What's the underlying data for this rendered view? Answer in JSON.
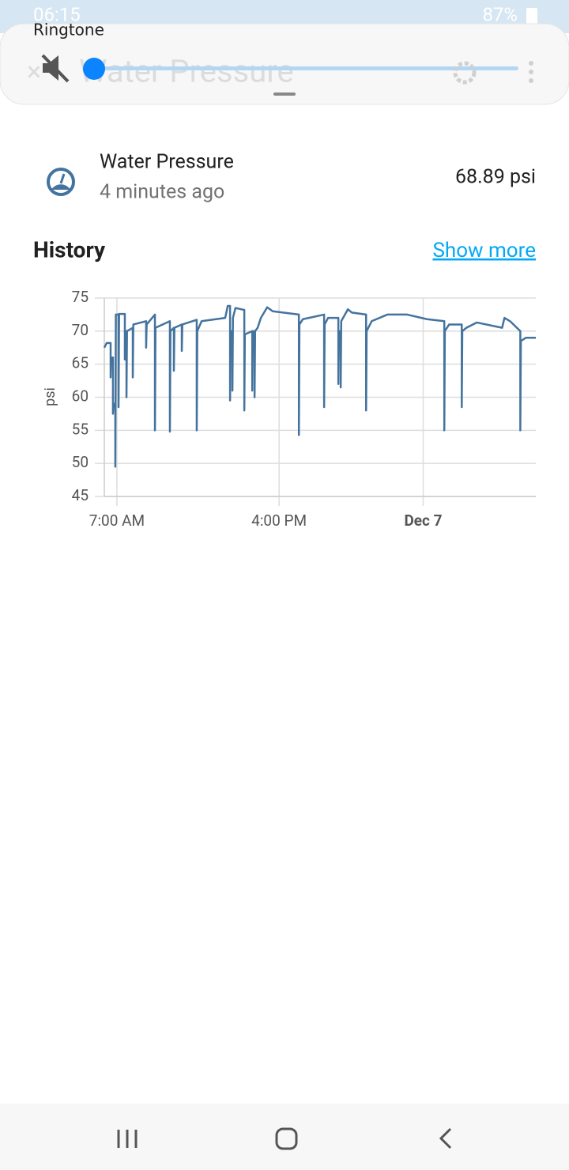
{
  "status_bar": {
    "time": "06:15",
    "battery": "87%"
  },
  "volume_panel": {
    "label": "Ringtone"
  },
  "dialog": {
    "title": "Water Pressure"
  },
  "entity": {
    "name": "Water Pressure",
    "last_changed": "4 minutes ago",
    "state": "68.89 psi"
  },
  "history": {
    "title": "History",
    "link": "Show more"
  },
  "chart_data": {
    "type": "line",
    "y_label": "psi",
    "x": [
      6.3,
      6.43,
      6.65,
      6.65,
      6.68,
      6.78,
      6.78,
      6.81,
      6.91,
      6.91,
      6.94,
      7.09,
      7.09,
      7.12,
      7.4,
      7.44,
      7.44,
      7.47,
      7.53,
      7.53,
      7.56,
      7.88,
      7.88,
      7.91,
      8.62,
      8.62,
      8.65,
      9.11,
      9.11,
      9.14,
      9.94,
      9.94,
      9.97,
      10.16,
      10.16,
      10.19,
      10.6,
      10.6,
      10.63,
      11.43,
      11.43,
      11.46,
      11.7,
      13.01,
      13.15,
      13.28,
      13.28,
      13.31,
      13.41,
      13.41,
      13.44,
      13.58,
      14.07,
      14.07,
      14.1,
      14.51,
      14.51,
      14.54,
      14.64,
      14.64,
      14.67,
      14.81,
      14.99,
      15.34,
      15.65,
      17.1,
      17.1,
      17.13,
      17.32,
      18.5,
      18.5,
      18.53,
      18.72,
      19.29,
      19.29,
      19.32,
      19.42,
      19.42,
      19.45,
      19.82,
      20.04,
      20.83,
      20.83,
      20.86,
      21.14,
      22.01,
      23.11,
      24.21,
      25.17,
      25.17,
      25.2,
      25.44,
      26.14,
      26.14,
      26.17,
      26.4,
      26.97,
      28.38,
      28.51,
      28.82,
      29.39,
      29.39,
      29.42,
      29.7,
      30.25
    ],
    "series": [
      {
        "color": "#44739e",
        "values": [
          67.5,
          68.2,
          68.2,
          63,
          66,
          66,
          57.5,
          59,
          59,
          49.5,
          72.5,
          72.5,
          58.5,
          72.6,
          72.6,
          72.6,
          65.7,
          70,
          70,
          60,
          70,
          70.5,
          63,
          71,
          71.5,
          67.5,
          71,
          72.5,
          55,
          70.5,
          71.5,
          54.8,
          70,
          70.5,
          64,
          70.5,
          71,
          67,
          71,
          71.7,
          55,
          70,
          71.5,
          72,
          73.8,
          73.8,
          59.5,
          70,
          70,
          61,
          72,
          73.5,
          73.2,
          58,
          69.5,
          70,
          61,
          70,
          70,
          60,
          70,
          70.5,
          72,
          73.6,
          73,
          72.5,
          54.3,
          71,
          71.8,
          72.5,
          58.5,
          71,
          72,
          72,
          62,
          70,
          70,
          61.5,
          71.5,
          73.3,
          72.8,
          72.5,
          58,
          70,
          71.5,
          72.5,
          72.5,
          71.8,
          71.5,
          55,
          70,
          71,
          71,
          58.5,
          70,
          70.5,
          71.3,
          70.5,
          72,
          71.5,
          70,
          55,
          68.5,
          69,
          69
        ]
      }
    ],
    "xlim": [
      6.3,
      30.25
    ],
    "xticks": [
      {
        "value": 7,
        "label": "7:00 AM"
      },
      {
        "value": 16,
        "label": "4:00 PM"
      },
      {
        "value": 24,
        "label": "Dec 7"
      }
    ],
    "ylim": [
      45,
      75
    ],
    "yticks": [
      45,
      50,
      55,
      60,
      65,
      70,
      75
    ],
    "grid": true
  }
}
